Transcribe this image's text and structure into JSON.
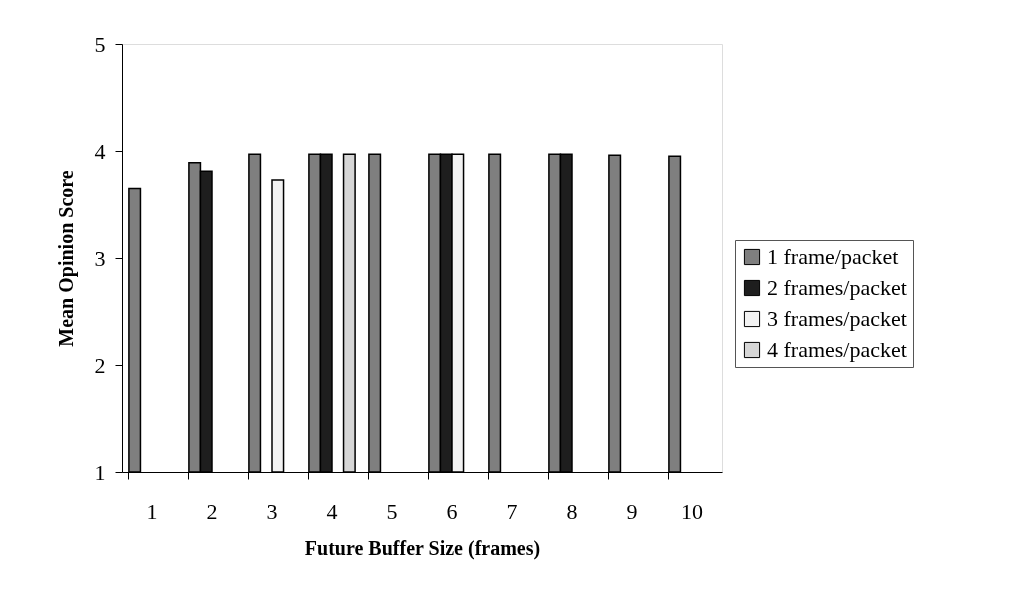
{
  "chart_data": {
    "type": "bar",
    "xlabel": "Future Buffer Size (frames)",
    "ylabel": "Mean Opinion Score",
    "categories": [
      "1",
      "2",
      "3",
      "4",
      "5",
      "6",
      "7",
      "8",
      "9",
      "10"
    ],
    "series": [
      {
        "name": "1 frame/packet",
        "color": "#7f7f7f",
        "values": [
          3.65,
          3.89,
          3.97,
          3.97,
          3.97,
          3.97,
          3.97,
          3.97,
          3.96,
          3.95
        ]
      },
      {
        "name": "2 frames/packet",
        "color": "#1e1e1e",
        "values": [
          null,
          3.81,
          null,
          3.97,
          null,
          3.97,
          null,
          3.97,
          null,
          null
        ]
      },
      {
        "name": "3 frames/packet",
        "color": "#f2f2f2",
        "values": [
          null,
          null,
          3.73,
          null,
          null,
          3.97,
          null,
          null,
          null,
          null
        ]
      },
      {
        "name": "4 frames/packet",
        "color": "#d6d6d6",
        "values": [
          null,
          null,
          null,
          3.97,
          null,
          null,
          null,
          null,
          null,
          null
        ]
      }
    ],
    "ylim": [
      1,
      5
    ],
    "yticks": [
      1,
      2,
      3,
      4,
      5
    ],
    "grid": false,
    "legend": "right"
  }
}
